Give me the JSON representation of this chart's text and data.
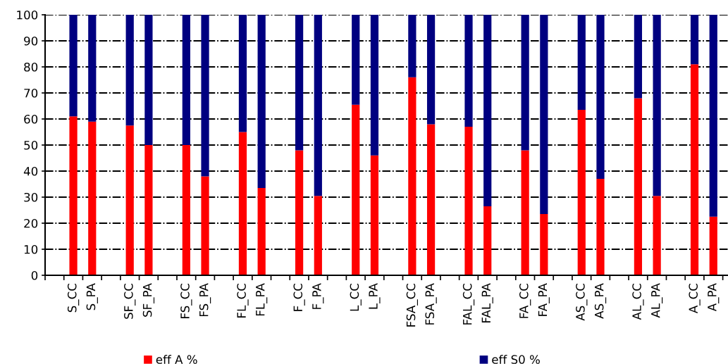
{
  "chart_data": {
    "type": "bar",
    "stacked": true,
    "categories": [
      null,
      "S_CC",
      "S_PA",
      null,
      "SF_CC",
      "SF_PA",
      null,
      "FS_CC",
      "FS_PA",
      null,
      "FL_CC",
      "FL_PA",
      null,
      "F_CC",
      "F_PA",
      null,
      "L_CC",
      "L_PA",
      null,
      "FSA_CC",
      "FSA_PA",
      null,
      "FAL_CC",
      "FAL_PA",
      null,
      "FA_CC",
      "FA_PA",
      null,
      "AS_CC",
      "AS_PA",
      null,
      "AL_CC",
      "AL_PA",
      null,
      "A_CC",
      "A_PA"
    ],
    "series": [
      {
        "name": "eff A %",
        "color": "#ff0000",
        "values": [
          null,
          61,
          59,
          null,
          57.5,
          50,
          null,
          50,
          38,
          null,
          55,
          33.5,
          null,
          48,
          30.5,
          null,
          65.5,
          46,
          null,
          76,
          58,
          null,
          57,
          26.5,
          null,
          48,
          23.5,
          null,
          63.5,
          37,
          null,
          68,
          30.5,
          null,
          81,
          22.5
        ]
      },
      {
        "name": "eff S0 %",
        "color": "#000080",
        "values": [
          null,
          39,
          41,
          null,
          42.5,
          50,
          null,
          50,
          62,
          null,
          45,
          66.5,
          null,
          52,
          69.5,
          null,
          34.5,
          54,
          null,
          24,
          42,
          null,
          43,
          73.5,
          null,
          52,
          76.5,
          null,
          36.5,
          63,
          null,
          32,
          69.5,
          null,
          19,
          77.5
        ]
      }
    ],
    "ylim": [
      0,
      100
    ],
    "yticks": [
      0,
      10,
      20,
      30,
      40,
      50,
      60,
      70,
      80,
      90,
      100
    ],
    "grid": "y",
    "legend": "bottom"
  }
}
